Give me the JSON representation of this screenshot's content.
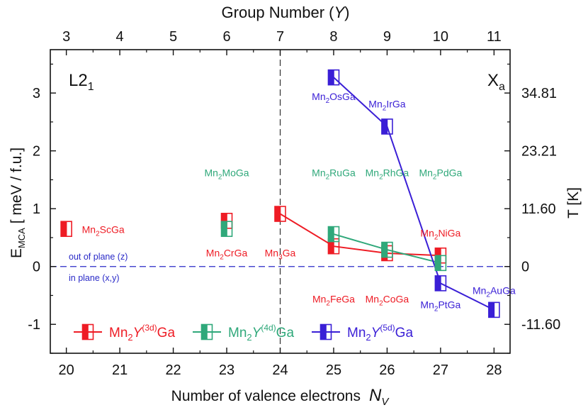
{
  "chart_data": {
    "type": "scatter",
    "x_label": "Number of valence electrons",
    "x_label_symbol": "N",
    "x_label_sub": "V",
    "top_label": "Group Number (",
    "top_label_sym": "Y",
    "top_label_end": ")",
    "y_label": "E",
    "y_label_sub": "MCA",
    "y_label_rest": "  [ meV / f.u.]",
    "right_label": "T  [K]",
    "x_ticks": [
      "20",
      "21",
      "22",
      "23",
      "24",
      "25",
      "26",
      "27",
      "28"
    ],
    "top_ticks": [
      "3",
      "4",
      "5",
      "6",
      "7",
      "8",
      "9",
      "10",
      "11"
    ],
    "y_ticks": [
      "-1",
      "0",
      "1",
      "2",
      "3"
    ],
    "right_ticks": [
      "-11.60",
      "0",
      "11.60",
      "23.21",
      "34.81"
    ],
    "xlim": [
      19.7,
      28.3
    ],
    "ylim": [
      -1.5,
      3.75
    ],
    "right_tick_values": [
      -1,
      0,
      1,
      2,
      3
    ],
    "corner_left": "L2",
    "corner_left_sub": "1",
    "corner_right": "X",
    "corner_right_sub": "a",
    "note_above": "out of plane (z)",
    "note_below": "in plane (x,y)",
    "vline_x": 24,
    "hline_y": 0,
    "colors": {
      "d3": "#ee1c25",
      "d4": "#2fa87a",
      "d5": "#3a1fd6",
      "dash": "#2a2ac8"
    },
    "series": [
      {
        "name": "3d",
        "legend_pre": "Mn",
        "legend_sub": "2",
        "legend_sym": "Y",
        "legend_sup": "(3d)",
        "legend_post": "Ga",
        "color_key": "d3",
        "line_from": 2,
        "points": [
          {
            "x": 20,
            "y": 0.65,
            "label_main": "Mn",
            "label_sub": "2",
            "label_post": "ScGa",
            "label_anchor": "e"
          },
          {
            "x": 23,
            "y": 0.79,
            "label_main": "Mn",
            "label_sub": "2",
            "label_post": "CrGa",
            "label_anchor": "s"
          },
          {
            "x": 24,
            "y": 0.91,
            "label_main": "Mn",
            "label_sub": "3",
            "label_post": "Ga",
            "label_anchor": "s"
          },
          {
            "x": 25,
            "y": 0.35,
            "label_main": "Mn",
            "label_sub": "2",
            "label_post": "FeGa",
            "label_anchor": "ss"
          },
          {
            "x": 26,
            "y": 0.23,
            "label_main": "Mn",
            "label_sub": "2",
            "label_post": "CoGa",
            "label_anchor": "ss"
          },
          {
            "x": 27,
            "y": 0.19,
            "label_main": "Mn",
            "label_sub": "2",
            "label_post": "NiGa",
            "label_anchor": "n"
          }
        ]
      },
      {
        "name": "4d",
        "legend_pre": "Mn",
        "legend_sub": "2",
        "legend_sym": "Y",
        "legend_sup": "(4d)",
        "legend_post": "Ga",
        "color_key": "d4",
        "line_from": 1,
        "points": [
          {
            "x": 23,
            "y": 0.65,
            "label_main": "Mn",
            "label_sub": "2",
            "label_post": "MoGa",
            "label_anchor": "nn"
          },
          {
            "x": 25,
            "y": 0.56,
            "label_main": "Mn",
            "label_sub": "2",
            "label_post": "RuGa",
            "label_anchor": "n"
          },
          {
            "x": 26,
            "y": 0.29,
            "label_main": "Mn",
            "label_sub": "2",
            "label_post": "RhGa",
            "label_anchor": "nn"
          },
          {
            "x": 27,
            "y": 0.06,
            "label_main": "Mn",
            "label_sub": "2",
            "label_post": "PdGa",
            "label_anchor": "nn"
          }
        ]
      },
      {
        "name": "5d",
        "legend_pre": "Mn",
        "legend_sub": "2",
        "legend_sym": "Y",
        "legend_sup": "(5d)",
        "legend_post": "Ga",
        "color_key": "d5",
        "line_from": 0,
        "points": [
          {
            "x": 25,
            "y": 3.27,
            "label_main": "Mn",
            "label_sub": "2",
            "label_post": "OsGa",
            "label_anchor": "s"
          },
          {
            "x": 26,
            "y": 2.42,
            "label_main": "Mn",
            "label_sub": "2",
            "label_post": "IrGa",
            "label_anchor": "n"
          },
          {
            "x": 27,
            "y": -0.29,
            "label_main": "Mn",
            "label_sub": "2",
            "label_post": "PtGa",
            "label_anchor": "s"
          },
          {
            "x": 28,
            "y": -0.75,
            "label_main": "Mn",
            "label_sub": "2",
            "label_post": "AuGa",
            "label_anchor": "n"
          }
        ]
      }
    ]
  }
}
